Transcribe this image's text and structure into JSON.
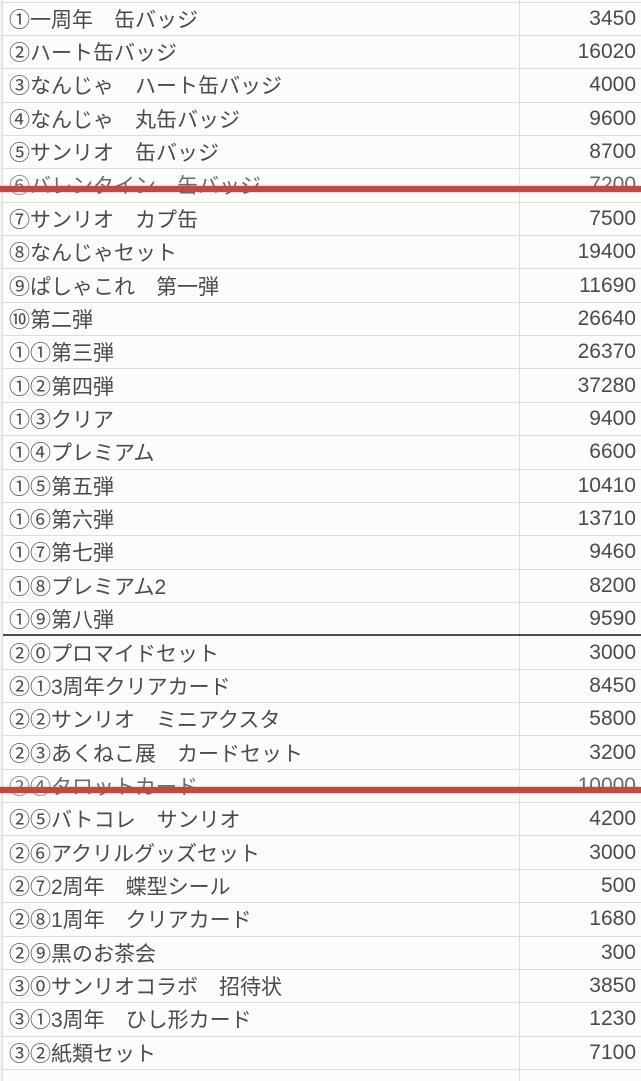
{
  "colors": {
    "strike_line": "#c04a42",
    "section_line": "#4e4e4e",
    "grid_border": "#dcdcda",
    "row_background": "#fcfcfb",
    "text": "#4b4b4b"
  },
  "table": {
    "rows": [
      {
        "label": "①一周年　缶バッジ",
        "value": "3450",
        "struck": false,
        "section_end": false
      },
      {
        "label": "②ハート缶バッジ",
        "value": "16020",
        "struck": false,
        "section_end": false
      },
      {
        "label": "③なんじゃ　ハート缶バッジ",
        "value": "4000",
        "struck": false,
        "section_end": false
      },
      {
        "label": "④なんじゃ　丸缶バッジ",
        "value": "9600",
        "struck": false,
        "section_end": false
      },
      {
        "label": "⑤サンリオ　缶バッジ",
        "value": "8700",
        "struck": false,
        "section_end": false
      },
      {
        "label": "⑥バレンタイン　缶バッジ",
        "value": "7200",
        "struck": true,
        "section_end": false
      },
      {
        "label": "⑦サンリオ　カプ缶",
        "value": "7500",
        "struck": false,
        "section_end": false
      },
      {
        "label": "⑧なんじゃセット",
        "value": "19400",
        "struck": false,
        "section_end": false
      },
      {
        "label": "⑨ぱしゃこれ　第一弾",
        "value": "11690",
        "struck": false,
        "section_end": false
      },
      {
        "label": "⑩第二弾",
        "value": "26640",
        "struck": false,
        "section_end": false
      },
      {
        "label": "①①第三弾",
        "value": "26370",
        "struck": false,
        "section_end": false
      },
      {
        "label": "①②第四弾",
        "value": "37280",
        "struck": false,
        "section_end": false
      },
      {
        "label": "①③クリア",
        "value": "9400",
        "struck": false,
        "section_end": false
      },
      {
        "label": "①④プレミアム",
        "value": "6600",
        "struck": false,
        "section_end": false
      },
      {
        "label": "①⑤第五弾",
        "value": "10410",
        "struck": false,
        "section_end": false
      },
      {
        "label": "①⑥第六弾",
        "value": "13710",
        "struck": false,
        "section_end": false
      },
      {
        "label": "①⑦第七弾",
        "value": "9460",
        "struck": false,
        "section_end": false
      },
      {
        "label": "①⑧プレミアム2",
        "value": "8200",
        "struck": false,
        "section_end": false
      },
      {
        "label": "①⑨第八弾",
        "value": "9590",
        "struck": false,
        "section_end": true
      },
      {
        "label": "②⓪プロマイドセット",
        "value": "3000",
        "struck": false,
        "section_end": false
      },
      {
        "label": "②①3周年クリアカード",
        "value": "8450",
        "struck": false,
        "section_end": false
      },
      {
        "label": "②②サンリオ　ミニアクスタ",
        "value": "5800",
        "struck": false,
        "section_end": false
      },
      {
        "label": "②③あくねこ展　カードセット",
        "value": "3200",
        "struck": false,
        "section_end": false
      },
      {
        "label": "②④タロットカード",
        "value": "10000",
        "struck": true,
        "section_end": false
      },
      {
        "label": "②⑤バトコレ　サンリオ",
        "value": "4200",
        "struck": false,
        "section_end": false
      },
      {
        "label": "②⑥アクリルグッズセット",
        "value": "3000",
        "struck": false,
        "section_end": false
      },
      {
        "label": "②⑦2周年　蝶型シール",
        "value": "500",
        "struck": false,
        "section_end": false
      },
      {
        "label": "②⑧1周年　クリアカード",
        "value": "1680",
        "struck": false,
        "section_end": false
      },
      {
        "label": "②⑨黒のお茶会",
        "value": "300",
        "struck": false,
        "section_end": false
      },
      {
        "label": "③⓪サンリオコラボ　招待状",
        "value": "3850",
        "struck": false,
        "section_end": false
      },
      {
        "label": "③①3周年　ひし形カード",
        "value": "1230",
        "struck": false,
        "section_end": false
      },
      {
        "label": "③②紙類セット",
        "value": "7100",
        "struck": false,
        "section_end": false
      }
    ]
  }
}
